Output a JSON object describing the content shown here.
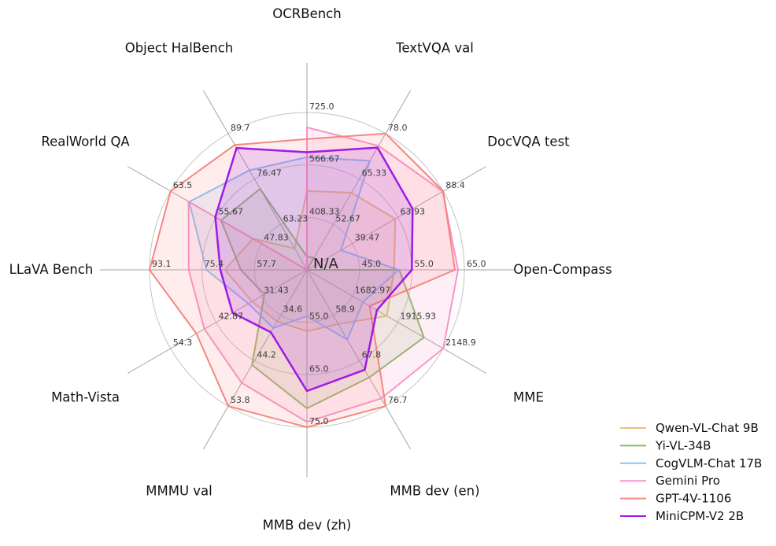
{
  "chart_data": {
    "type": "radar",
    "title": "",
    "center_label": "N/A",
    "grid": "on",
    "legend_position": "lower right",
    "axes": [
      {
        "label": "OCRBench",
        "ticks": [
          "408.33",
          "566.67",
          "725.0"
        ]
      },
      {
        "label": "TextVQA val",
        "ticks": [
          "52.67",
          "65.33",
          "78.0"
        ]
      },
      {
        "label": "DocVQA test",
        "ticks": [
          "39.47",
          "63.93",
          "88.4"
        ]
      },
      {
        "label": "Open-Compass",
        "ticks": [
          "45.0",
          "55.0",
          "65.0"
        ]
      },
      {
        "label": "MME",
        "ticks": [
          "1682.97",
          "1915.93",
          "2148.9"
        ]
      },
      {
        "label": "MMB dev (en)",
        "ticks": [
          "58.9",
          "67.8",
          "76.7"
        ]
      },
      {
        "label": "MMB dev (zh)",
        "ticks": [
          "55.0",
          "65.0",
          "75.0"
        ]
      },
      {
        "label": "MMMU val",
        "ticks": [
          "34.6",
          "44.2",
          "53.8"
        ]
      },
      {
        "label": "Math-Vista",
        "ticks": [
          "31.43",
          "42.87",
          "54.3"
        ]
      },
      {
        "label": "LLaVA Bench",
        "ticks": [
          "57.7",
          "75.4",
          "93.1"
        ]
      },
      {
        "label": "RealWorld QA",
        "ticks": [
          "47.83",
          "55.67",
          "63.5"
        ]
      },
      {
        "label": "Object HalBench",
        "ticks": [
          "63.23",
          "76.47",
          "89.7"
        ]
      }
    ],
    "series": [
      {
        "name": "Qwen-VL-Chat 9B",
        "color": "#e9bd76",
        "emphasis": false,
        "values": [
          488,
          61.5,
          62.6,
          51.6,
          1860.0,
          60.6,
          56.7,
          35.9,
          33.8,
          67.7,
          49.3,
          56.2
        ]
      },
      {
        "name": "Yi-VL-34B",
        "color": "#87b55f",
        "emphasis": false,
        "values": [
          290,
          43.4,
          null,
          52.6,
          2050.2,
          71.1,
          71.4,
          45.1,
          30.7,
          62.3,
          54.8,
          73.6
        ]
      },
      {
        "name": "CogVLM-Chat 17B",
        "color": "#7fc1f7",
        "emphasis": false,
        "values": [
          590,
          70.4,
          33.3,
          52.5,
          1736.6,
          63.7,
          53.8,
          37.3,
          34.7,
          73.9,
          60.3,
          79.0
        ]
      },
      {
        "name": "Gemini Pro",
        "color": "#f78fc5",
        "emphasis": false,
        "values": [
          680,
          74.6,
          88.1,
          63.8,
          2148.9,
          75.2,
          74.0,
          48.9,
          45.8,
          79.9,
          60.4,
          null
        ]
      },
      {
        "name": "GPT-4V-1106",
        "color": "#f5817b",
        "emphasis": false,
        "values": [
          645,
          78.0,
          88.4,
          63.2,
          1771.5,
          76.7,
          75.0,
          53.8,
          47.8,
          93.1,
          63.5,
          86.4
        ]
      },
      {
        "name": "MiniCPM-V2 2B",
        "color": "#9b0fe8",
        "emphasis": true,
        "values": [
          605,
          74.1,
          71.9,
          55.0,
          1808.6,
          69.6,
          68.1,
          38.2,
          38.7,
          69.2,
          55.8,
          85.5
        ]
      }
    ]
  }
}
